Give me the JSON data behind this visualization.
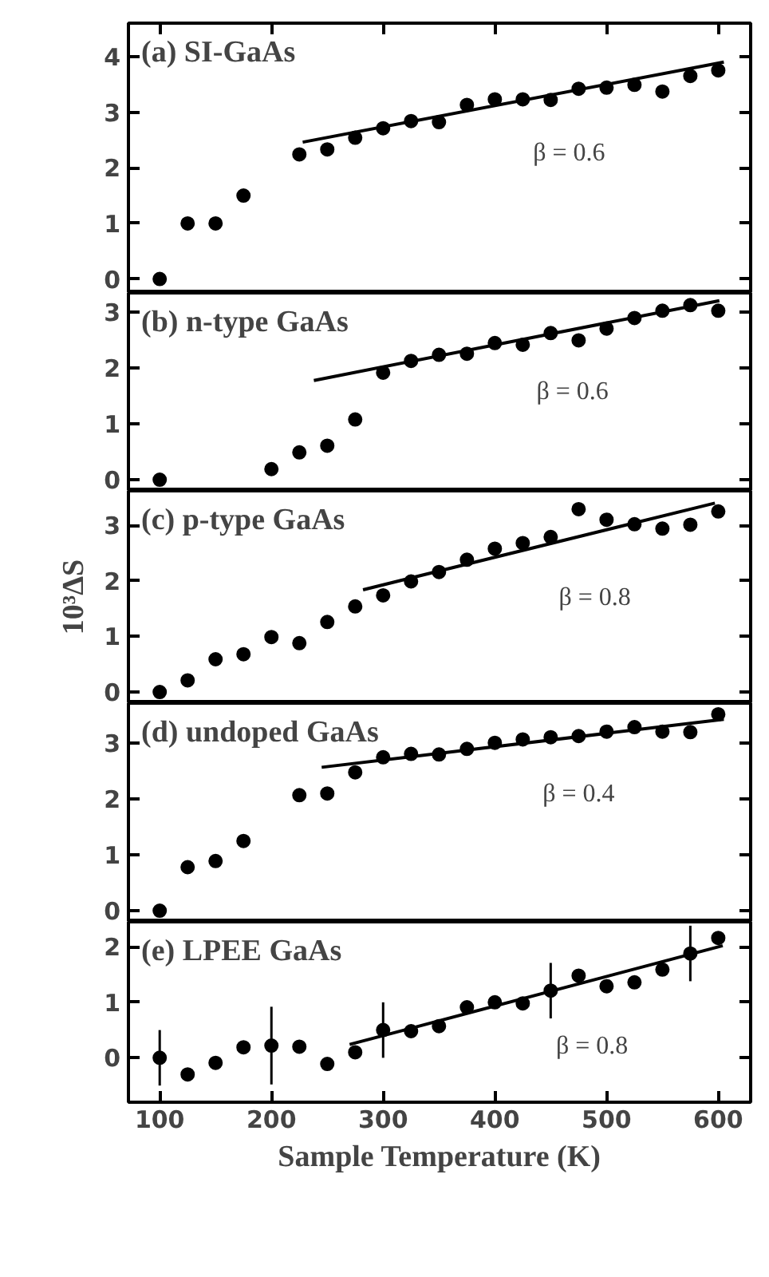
{
  "chart_data": [
    {
      "type": "scatter",
      "title": "(a) SI-GaAs",
      "xlim": [
        72,
        629
      ],
      "xticks": [
        100,
        200,
        300,
        400,
        500,
        600
      ],
      "ylim": [
        -0.25,
        4.6
      ],
      "yticks": [
        0,
        1,
        2,
        3,
        4
      ],
      "tick_labels": "y",
      "grid": false,
      "annotations": [
        "β = 0.6"
      ],
      "series": [
        {
          "marker": "circle",
          "color": "#000000",
          "x": [
            100,
            125,
            150,
            175,
            225,
            250,
            275,
            300,
            325,
            350,
            375,
            400,
            425,
            450,
            475,
            500,
            525,
            550,
            575,
            600
          ],
          "values": [
            0,
            1.0,
            1.0,
            1.5,
            2.24,
            2.33,
            2.54,
            2.71,
            2.84,
            2.82,
            3.13,
            3.23,
            3.23,
            3.22,
            3.42,
            3.44,
            3.49,
            3.37,
            3.65,
            3.75
          ]
        },
        {
          "type": "line",
          "color": "#000000",
          "x": [
            228,
            605
          ],
          "values": [
            2.46,
            3.9
          ]
        }
      ]
    },
    {
      "type": "scatter",
      "title": "(b) n-type GaAs",
      "xlim": [
        72,
        629
      ],
      "xticks": [
        100,
        200,
        300,
        400,
        500,
        600
      ],
      "ylim": [
        -0.2,
        3.35
      ],
      "yticks": [
        0,
        1,
        2,
        3
      ],
      "tick_labels": "y",
      "grid": false,
      "annotations": [
        "β = 0.6"
      ],
      "series": [
        {
          "marker": "circle",
          "color": "#000000",
          "x": [
            100,
            200,
            225,
            250,
            275,
            300,
            325,
            350,
            375,
            400,
            425,
            450,
            475,
            500,
            525,
            550,
            575,
            600
          ],
          "values": [
            0,
            0.19,
            0.49,
            0.61,
            1.08,
            1.92,
            2.13,
            2.24,
            2.26,
            2.45,
            2.42,
            2.63,
            2.5,
            2.71,
            2.9,
            3.03,
            3.13,
            3.03
          ]
        },
        {
          "type": "line",
          "color": "#000000",
          "x": [
            238,
            601
          ],
          "values": [
            1.78,
            3.21
          ]
        }
      ]
    },
    {
      "type": "scatter",
      "title": "(c)  p-type GaAs",
      "ylabel": "10³ΔS",
      "xlim": [
        72,
        629
      ],
      "xticks": [
        100,
        200,
        300,
        400,
        500,
        600
      ],
      "ylim": [
        -0.2,
        3.62
      ],
      "yticks": [
        0,
        1,
        2,
        3
      ],
      "tick_labels": "y",
      "grid": false,
      "annotations": [
        "β = 0.8"
      ],
      "series": [
        {
          "marker": "circle",
          "color": "#000000",
          "x": [
            100,
            125,
            150,
            175,
            200,
            225,
            250,
            275,
            300,
            325,
            350,
            375,
            400,
            425,
            450,
            475,
            500,
            525,
            550,
            575,
            600
          ],
          "values": [
            0,
            0.21,
            0.59,
            0.68,
            0.99,
            0.88,
            1.26,
            1.54,
            1.74,
            1.99,
            2.16,
            2.38,
            2.58,
            2.68,
            2.79,
            3.29,
            3.1,
            3.02,
            2.94,
            3.01,
            3.25
          ]
        },
        {
          "type": "line",
          "color": "#000000",
          "x": [
            282,
            597
          ],
          "values": [
            1.84,
            3.4
          ]
        }
      ]
    },
    {
      "type": "scatter",
      "title": "(d) undoped GaAs",
      "xlim": [
        72,
        629
      ],
      "xticks": [
        100,
        200,
        300,
        400,
        500,
        600
      ],
      "ylim": [
        -0.2,
        3.72
      ],
      "yticks": [
        0,
        1,
        2,
        3
      ],
      "tick_labels": "y",
      "grid": false,
      "annotations": [
        "β = 0.4"
      ],
      "series": [
        {
          "marker": "circle",
          "color": "#000000",
          "x": [
            100,
            125,
            150,
            175,
            225,
            250,
            275,
            300,
            325,
            350,
            375,
            400,
            425,
            450,
            475,
            500,
            525,
            550,
            575,
            600
          ],
          "values": [
            0,
            0.78,
            0.89,
            1.25,
            2.07,
            2.1,
            2.48,
            2.75,
            2.81,
            2.8,
            2.9,
            3.01,
            3.07,
            3.11,
            3.13,
            3.21,
            3.29,
            3.21,
            3.2,
            3.52
          ]
        },
        {
          "type": "line",
          "color": "#000000",
          "x": [
            245,
            605
          ],
          "values": [
            2.57,
            3.43
          ]
        }
      ]
    },
    {
      "type": "scatter",
      "title": "(e)  LPEE GaAs",
      "xlabel": "Sample Temperature (K)",
      "xlim": [
        72,
        629
      ],
      "xticks": [
        100,
        200,
        300,
        400,
        500,
        600
      ],
      "ylim": [
        -0.8,
        2.45
      ],
      "yticks": [
        0,
        1,
        2
      ],
      "grid": false,
      "annotations": [
        "β = 0.8"
      ],
      "series": [
        {
          "marker": "circle",
          "color": "#000000",
          "x": [
            100,
            125,
            150,
            175,
            200,
            225,
            250,
            275,
            300,
            325,
            350,
            375,
            400,
            425,
            450,
            475,
            500,
            525,
            550,
            575,
            600
          ],
          "values": [
            0,
            -0.3,
            -0.09,
            0.19,
            0.22,
            0.2,
            -0.11,
            0.1,
            0.5,
            0.48,
            0.57,
            0.91,
            1.0,
            0.98,
            1.21,
            1.48,
            1.29,
            1.36,
            1.59,
            1.88,
            2.16
          ],
          "errors": [
            0.5,
            null,
            null,
            null,
            0.7,
            null,
            null,
            null,
            0.5,
            null,
            null,
            null,
            null,
            null,
            0.5,
            null,
            null,
            null,
            null,
            0.5,
            null
          ]
        },
        {
          "type": "line",
          "color": "#000000",
          "x": [
            270,
            604
          ],
          "values": [
            0.24,
            2.02
          ]
        }
      ]
    }
  ]
}
